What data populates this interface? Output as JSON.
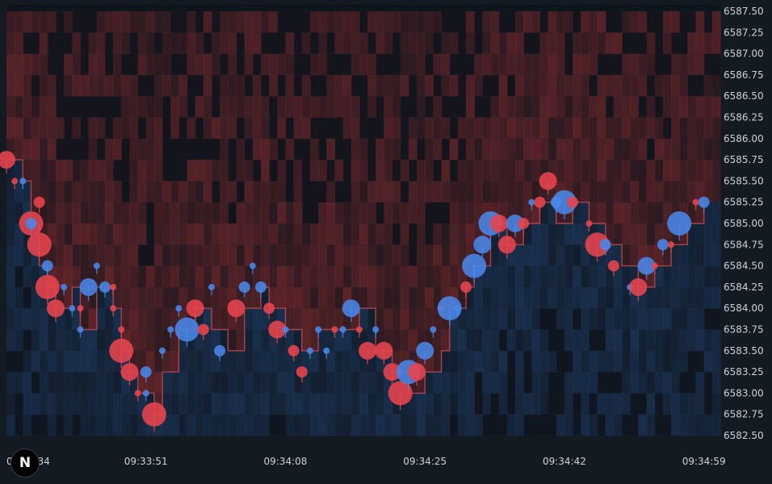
{
  "logo_text": "N",
  "colors": {
    "background": "#131a22",
    "ask_heat": "#7a2a2e",
    "bid_heat": "#1f3b63",
    "buy": "#4a86e8",
    "sell": "#e8444d",
    "tick_text": "#c9d1d9",
    "grid": "#1b232c"
  },
  "chart_data": {
    "type": "scatter",
    "subtype": "order-book heatmap with trade bubbles",
    "title": "",
    "xlabel": "",
    "ylabel": "",
    "y_axis_position": "right",
    "ylim": [
      6582.5,
      6587.5
    ],
    "xlim": [
      "09:33:34",
      "09:35:01"
    ],
    "x_tick_labels": [
      "09:33:34",
      "09:33:51",
      "09:34:08",
      "09:34:25",
      "09:34:42",
      "09:34:59"
    ],
    "y_tick_labels": [
      "6587.50",
      "6587.25",
      "6587.00",
      "6586.75",
      "6586.50",
      "6586.25",
      "6586.00",
      "6585.75",
      "6585.50",
      "6585.25",
      "6585.00",
      "6584.75",
      "6584.50",
      "6584.25",
      "6584.00",
      "6583.75",
      "6583.50",
      "6583.25",
      "6583.00",
      "6582.75",
      "6582.50"
    ],
    "price_path": [
      [
        "09:33:34",
        6585.75
      ],
      [
        "09:33:36",
        6585.5
      ],
      [
        "09:33:37",
        6585.0
      ],
      [
        "09:33:38",
        6584.5
      ],
      [
        "09:33:39",
        6584.25
      ],
      [
        "09:33:40",
        6584.0
      ],
      [
        "09:33:42",
        6584.25
      ],
      [
        "09:33:43",
        6583.75
      ],
      [
        "09:33:45",
        6584.25
      ],
      [
        "09:33:47",
        6584.0
      ],
      [
        "09:33:48",
        6583.5
      ],
      [
        "09:33:49",
        6583.25
      ],
      [
        "09:33:50",
        6583.0
      ],
      [
        "09:33:52",
        6582.75
      ],
      [
        "09:33:53",
        6583.25
      ],
      [
        "09:33:55",
        6583.75
      ],
      [
        "09:33:57",
        6584.0
      ],
      [
        "09:33:59",
        6583.75
      ],
      [
        "09:34:01",
        6583.5
      ],
      [
        "09:34:03",
        6584.0
      ],
      [
        "09:34:05",
        6584.25
      ],
      [
        "09:34:06",
        6584.0
      ],
      [
        "09:34:08",
        6583.75
      ],
      [
        "09:34:10",
        6583.5
      ],
      [
        "09:34:12",
        6583.75
      ],
      [
        "09:34:15",
        6583.75
      ],
      [
        "09:34:17",
        6584.0
      ],
      [
        "09:34:19",
        6583.5
      ],
      [
        "09:34:21",
        6583.25
      ],
      [
        "09:34:23",
        6583.0
      ],
      [
        "09:34:25",
        6583.25
      ],
      [
        "09:34:27",
        6583.5
      ],
      [
        "09:34:28",
        6584.0
      ],
      [
        "09:34:30",
        6584.25
      ],
      [
        "09:34:31",
        6584.5
      ],
      [
        "09:34:33",
        6585.0
      ],
      [
        "09:34:35",
        6584.75
      ],
      [
        "09:34:37",
        6585.0
      ],
      [
        "09:34:39",
        6585.25
      ],
      [
        "09:34:41",
        6585.0
      ],
      [
        "09:34:43",
        6585.25
      ],
      [
        "09:34:45",
        6585.0
      ],
      [
        "09:34:47",
        6584.75
      ],
      [
        "09:34:49",
        6584.5
      ],
      [
        "09:34:51",
        6584.25
      ],
      [
        "09:34:53",
        6584.5
      ],
      [
        "09:34:55",
        6584.75
      ],
      [
        "09:34:57",
        6585.0
      ],
      [
        "09:34:59",
        6585.25
      ]
    ],
    "trades": [
      {
        "t": "09:33:34",
        "p": 6585.75,
        "side": "sell",
        "size": 3
      },
      {
        "t": "09:33:35",
        "p": 6585.5,
        "side": "sell",
        "size": 1
      },
      {
        "t": "09:33:36",
        "p": 6585.5,
        "side": "buy",
        "size": 1
      },
      {
        "t": "09:33:37",
        "p": 6585.0,
        "side": "sell",
        "size": 4
      },
      {
        "t": "09:33:37",
        "p": 6585.0,
        "side": "buy",
        "size": 2
      },
      {
        "t": "09:33:38",
        "p": 6585.25,
        "side": "sell",
        "size": 2
      },
      {
        "t": "09:33:38",
        "p": 6584.75,
        "side": "sell",
        "size": 4
      },
      {
        "t": "09:33:39",
        "p": 6584.5,
        "side": "buy",
        "size": 2
      },
      {
        "t": "09:33:39",
        "p": 6584.25,
        "side": "sell",
        "size": 4
      },
      {
        "t": "09:33:40",
        "p": 6584.0,
        "side": "sell",
        "size": 3
      },
      {
        "t": "09:33:41",
        "p": 6584.25,
        "side": "buy",
        "size": 1
      },
      {
        "t": "09:33:42",
        "p": 6584.0,
        "side": "buy",
        "size": 1
      },
      {
        "t": "09:33:43",
        "p": 6584.0,
        "side": "sell",
        "size": 1
      },
      {
        "t": "09:33:43",
        "p": 6583.75,
        "side": "buy",
        "size": 1
      },
      {
        "t": "09:33:44",
        "p": 6584.25,
        "side": "buy",
        "size": 3
      },
      {
        "t": "09:33:45",
        "p": 6584.5,
        "side": "buy",
        "size": 1
      },
      {
        "t": "09:33:46",
        "p": 6584.25,
        "side": "buy",
        "size": 2
      },
      {
        "t": "09:33:47",
        "p": 6584.25,
        "side": "sell",
        "size": 1
      },
      {
        "t": "09:33:47",
        "p": 6584.0,
        "side": "sell",
        "size": 1
      },
      {
        "t": "09:33:48",
        "p": 6583.5,
        "side": "sell",
        "size": 4
      },
      {
        "t": "09:33:48",
        "p": 6583.75,
        "side": "sell",
        "size": 1
      },
      {
        "t": "09:33:49",
        "p": 6583.25,
        "side": "sell",
        "size": 3
      },
      {
        "t": "09:33:50",
        "p": 6583.0,
        "side": "sell",
        "size": 1
      },
      {
        "t": "09:33:51",
        "p": 6583.25,
        "side": "buy",
        "size": 2
      },
      {
        "t": "09:33:51",
        "p": 6583.0,
        "side": "buy",
        "size": 1
      },
      {
        "t": "09:33:52",
        "p": 6582.75,
        "side": "sell",
        "size": 4
      },
      {
        "t": "09:33:53",
        "p": 6583.5,
        "side": "buy",
        "size": 1
      },
      {
        "t": "09:33:54",
        "p": 6583.75,
        "side": "buy",
        "size": 1
      },
      {
        "t": "09:33:55",
        "p": 6584.0,
        "side": "buy",
        "size": 1
      },
      {
        "t": "09:33:56",
        "p": 6583.75,
        "side": "buy",
        "size": 4
      },
      {
        "t": "09:33:57",
        "p": 6584.0,
        "side": "sell",
        "size": 3
      },
      {
        "t": "09:33:58",
        "p": 6583.75,
        "side": "sell",
        "size": 2
      },
      {
        "t": "09:33:59",
        "p": 6584.25,
        "side": "buy",
        "size": 1
      },
      {
        "t": "09:34:00",
        "p": 6583.5,
        "side": "buy",
        "size": 2
      },
      {
        "t": "09:34:02",
        "p": 6584.0,
        "side": "sell",
        "size": 3
      },
      {
        "t": "09:34:03",
        "p": 6584.25,
        "side": "buy",
        "size": 2
      },
      {
        "t": "09:34:04",
        "p": 6584.5,
        "side": "buy",
        "size": 1
      },
      {
        "t": "09:34:05",
        "p": 6584.25,
        "side": "buy",
        "size": 2
      },
      {
        "t": "09:34:06",
        "p": 6584.0,
        "side": "sell",
        "size": 2
      },
      {
        "t": "09:34:07",
        "p": 6583.75,
        "side": "sell",
        "size": 3
      },
      {
        "t": "09:34:08",
        "p": 6583.75,
        "side": "buy",
        "size": 1
      },
      {
        "t": "09:34:09",
        "p": 6583.5,
        "side": "sell",
        "size": 2
      },
      {
        "t": "09:34:10",
        "p": 6583.25,
        "side": "sell",
        "size": 2
      },
      {
        "t": "09:34:11",
        "p": 6583.5,
        "side": "buy",
        "size": 1
      },
      {
        "t": "09:34:12",
        "p": 6583.75,
        "side": "buy",
        "size": 1
      },
      {
        "t": "09:34:13",
        "p": 6583.5,
        "side": "buy",
        "size": 1
      },
      {
        "t": "09:34:14",
        "p": 6583.75,
        "side": "sell",
        "size": 1
      },
      {
        "t": "09:34:15",
        "p": 6583.75,
        "side": "buy",
        "size": 1
      },
      {
        "t": "09:34:16",
        "p": 6584.0,
        "side": "buy",
        "size": 3
      },
      {
        "t": "09:34:17",
        "p": 6583.75,
        "side": "sell",
        "size": 1
      },
      {
        "t": "09:34:18",
        "p": 6583.5,
        "side": "sell",
        "size": 3
      },
      {
        "t": "09:34:19",
        "p": 6583.75,
        "side": "buy",
        "size": 1
      },
      {
        "t": "09:34:20",
        "p": 6583.5,
        "side": "sell",
        "size": 3
      },
      {
        "t": "09:34:21",
        "p": 6583.25,
        "side": "sell",
        "size": 3
      },
      {
        "t": "09:34:22",
        "p": 6583.0,
        "side": "sell",
        "size": 4
      },
      {
        "t": "09:34:23",
        "p": 6583.25,
        "side": "buy",
        "size": 4
      },
      {
        "t": "09:34:24",
        "p": 6583.25,
        "side": "sell",
        "size": 3
      },
      {
        "t": "09:34:25",
        "p": 6583.5,
        "side": "buy",
        "size": 3
      },
      {
        "t": "09:34:26",
        "p": 6583.75,
        "side": "buy",
        "size": 1
      },
      {
        "t": "09:34:27",
        "p": 6584.0,
        "side": "sell",
        "size": 1
      },
      {
        "t": "09:34:28",
        "p": 6584.0,
        "side": "buy",
        "size": 4
      },
      {
        "t": "09:34:29",
        "p": 6584.0,
        "side": "buy",
        "size": 1
      },
      {
        "t": "09:34:30",
        "p": 6584.25,
        "side": "sell",
        "size": 2
      },
      {
        "t": "09:34:31",
        "p": 6584.5,
        "side": "buy",
        "size": 4
      },
      {
        "t": "09:34:32",
        "p": 6584.75,
        "side": "buy",
        "size": 3
      },
      {
        "t": "09:34:33",
        "p": 6585.0,
        "side": "buy",
        "size": 4
      },
      {
        "t": "09:34:34",
        "p": 6585.0,
        "side": "sell",
        "size": 3
      },
      {
        "t": "09:34:35",
        "p": 6584.75,
        "side": "sell",
        "size": 3
      },
      {
        "t": "09:34:36",
        "p": 6585.0,
        "side": "buy",
        "size": 3
      },
      {
        "t": "09:34:37",
        "p": 6585.0,
        "side": "sell",
        "size": 2
      },
      {
        "t": "09:34:38",
        "p": 6585.25,
        "side": "buy",
        "size": 1
      },
      {
        "t": "09:34:39",
        "p": 6585.25,
        "side": "sell",
        "size": 2
      },
      {
        "t": "09:34:40",
        "p": 6585.5,
        "side": "sell",
        "size": 3
      },
      {
        "t": "09:34:41",
        "p": 6585.25,
        "side": "buy",
        "size": 2
      },
      {
        "t": "09:34:42",
        "p": 6585.25,
        "side": "buy",
        "size": 4
      },
      {
        "t": "09:34:43",
        "p": 6585.25,
        "side": "sell",
        "size": 2
      },
      {
        "t": "09:34:45",
        "p": 6585.0,
        "side": "sell",
        "size": 1
      },
      {
        "t": "09:34:46",
        "p": 6584.75,
        "side": "sell",
        "size": 4
      },
      {
        "t": "09:34:47",
        "p": 6584.75,
        "side": "buy",
        "size": 2
      },
      {
        "t": "09:34:48",
        "p": 6584.5,
        "side": "sell",
        "size": 2
      },
      {
        "t": "09:34:50",
        "p": 6584.25,
        "side": "buy",
        "size": 1
      },
      {
        "t": "09:34:51",
        "p": 6584.25,
        "side": "sell",
        "size": 3
      },
      {
        "t": "09:34:52",
        "p": 6584.5,
        "side": "buy",
        "size": 3
      },
      {
        "t": "09:34:53",
        "p": 6584.5,
        "side": "sell",
        "size": 1
      },
      {
        "t": "09:34:54",
        "p": 6584.75,
        "side": "buy",
        "size": 2
      },
      {
        "t": "09:34:55",
        "p": 6584.75,
        "side": "sell",
        "size": 1
      },
      {
        "t": "09:34:56",
        "p": 6585.0,
        "side": "buy",
        "size": 4
      },
      {
        "t": "09:34:58",
        "p": 6585.25,
        "side": "sell",
        "size": 1
      },
      {
        "t": "09:34:59",
        "p": 6585.25,
        "side": "buy",
        "size": 2
      }
    ]
  }
}
